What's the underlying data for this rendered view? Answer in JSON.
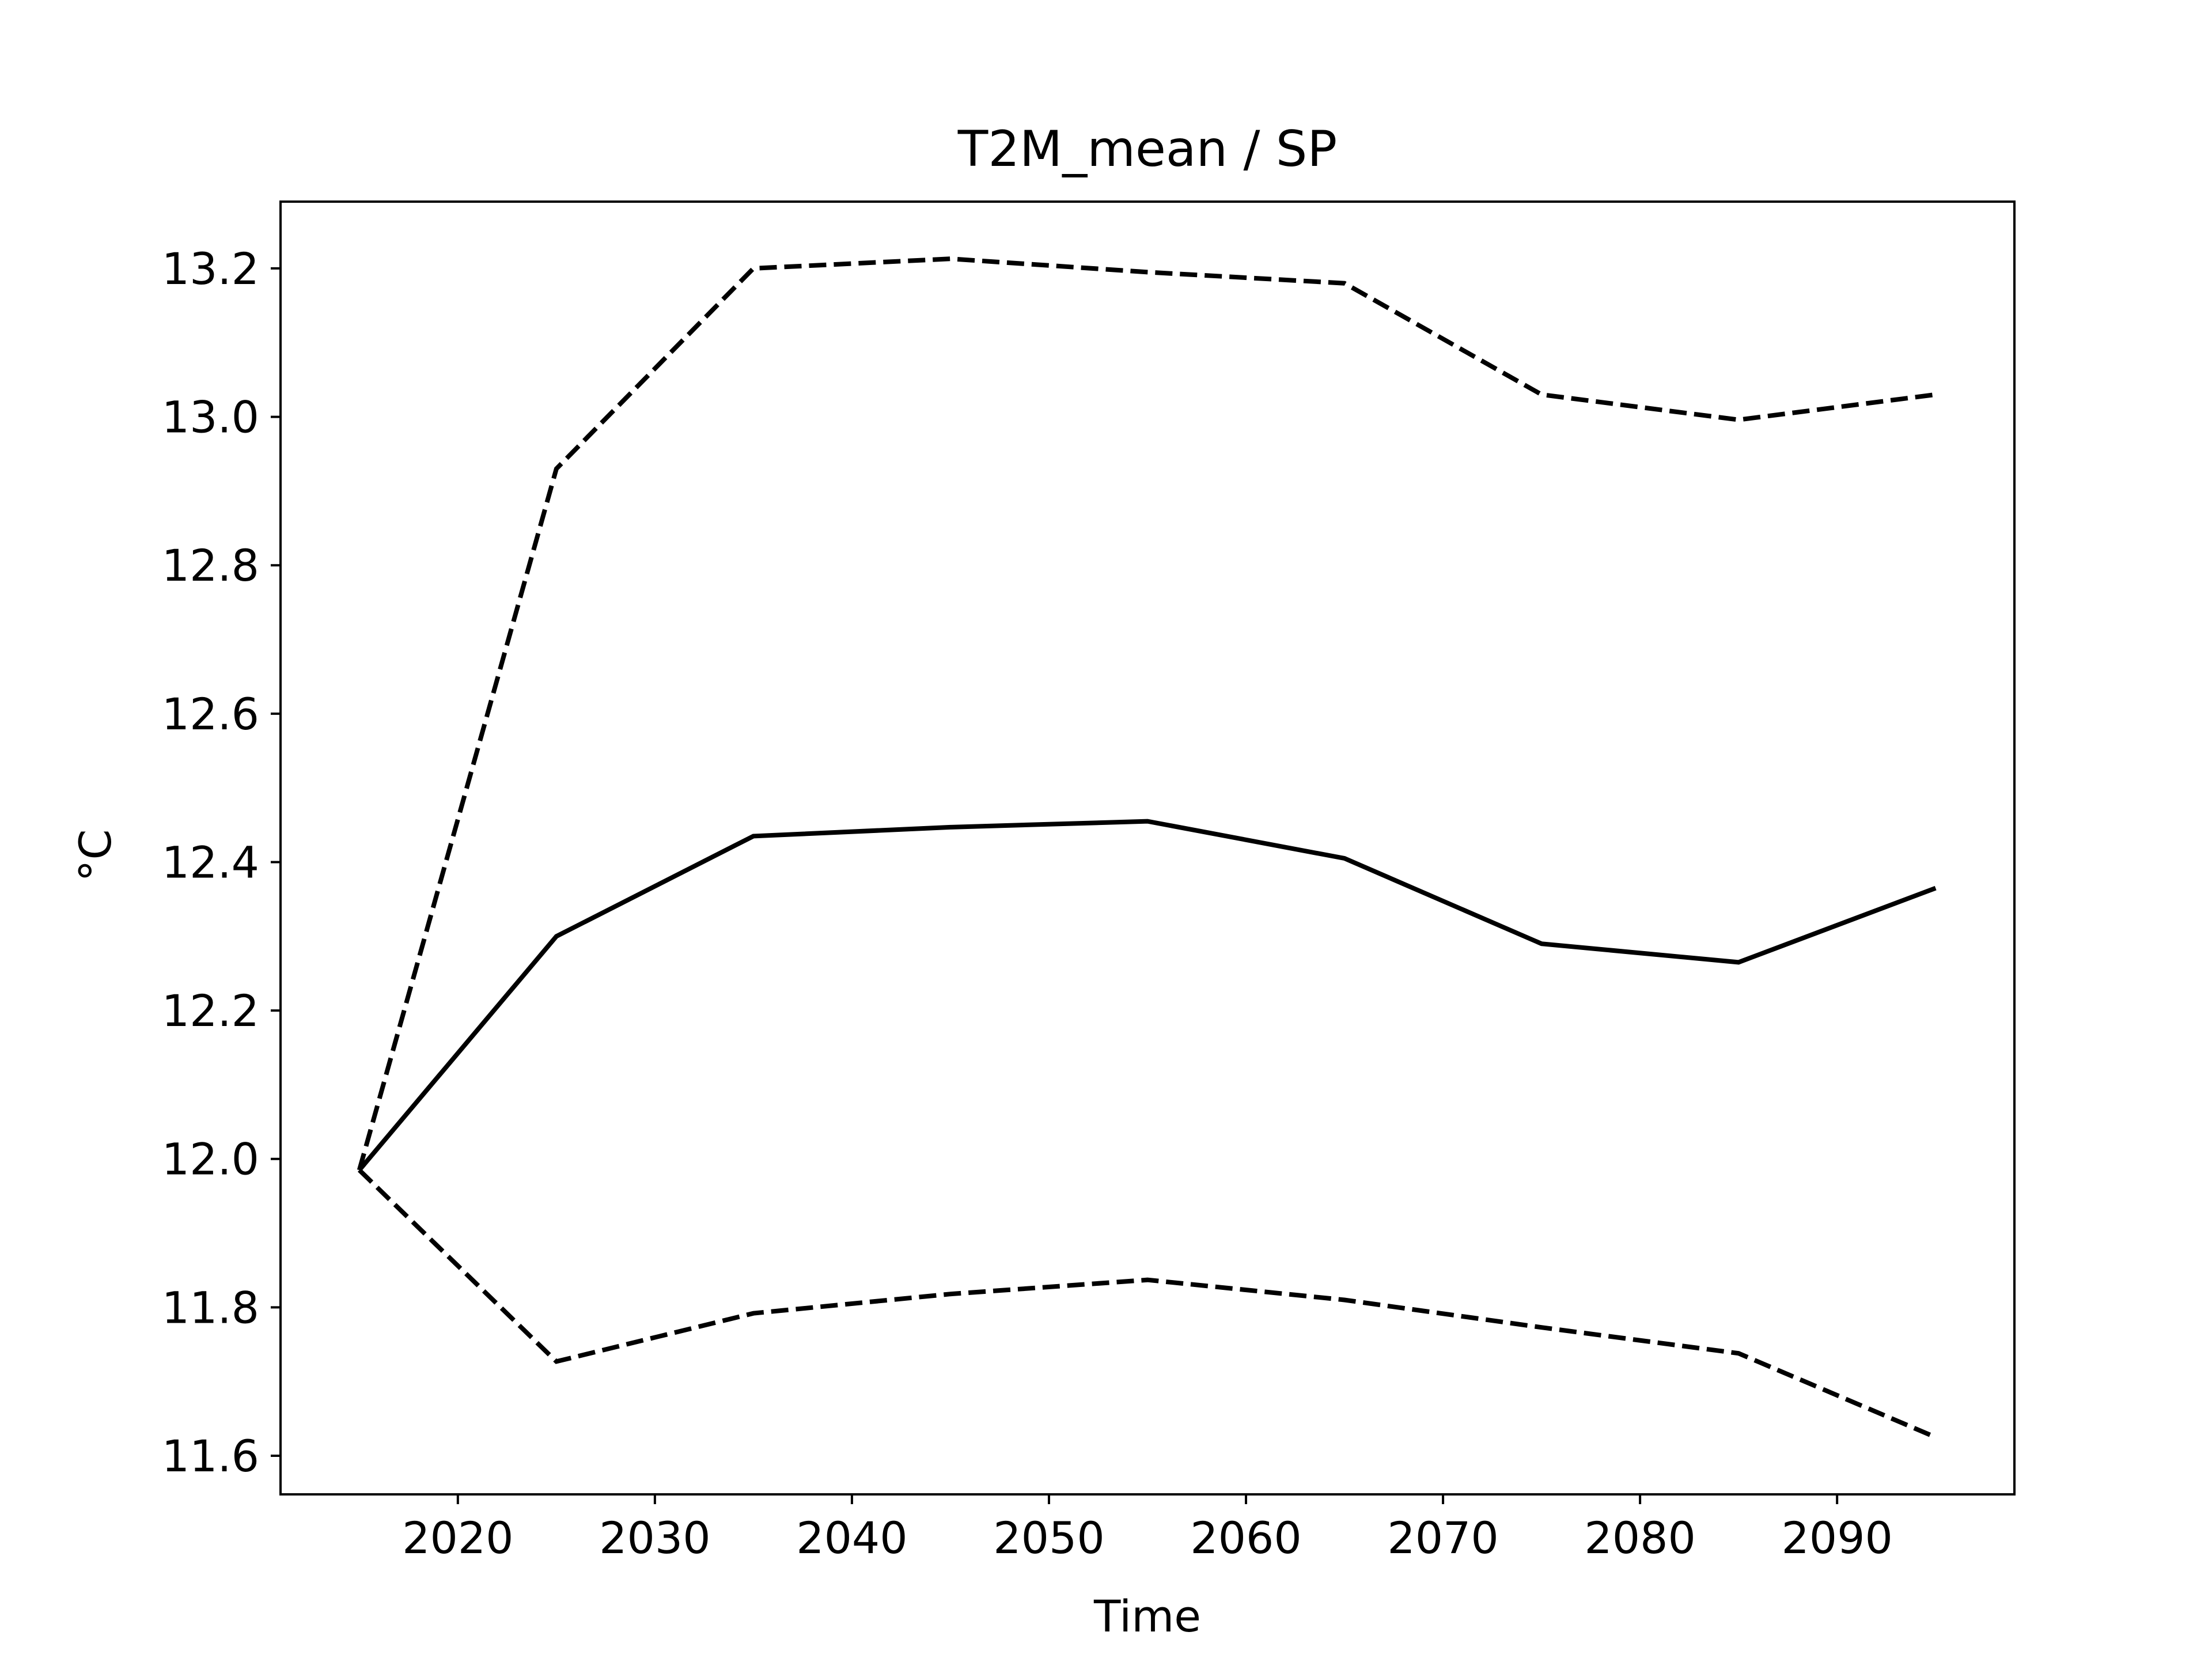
{
  "chart_data": {
    "type": "line",
    "title": "T2M_mean / SP",
    "xlabel": "Time",
    "ylabel": "°C",
    "x": [
      2015,
      2025,
      2035,
      2045,
      2055,
      2065,
      2075,
      2085,
      2095
    ],
    "series": [
      {
        "style": "solid",
        "values": [
          11.985,
          12.3,
          12.435,
          12.447,
          12.455,
          12.405,
          12.29,
          12.265,
          12.365
        ]
      },
      {
        "style": "dashed",
        "values": [
          11.985,
          12.93,
          13.2,
          13.213,
          13.195,
          13.18,
          13.03,
          12.996,
          13.03
        ]
      },
      {
        "style": "dashed",
        "values": [
          11.985,
          11.727,
          11.792,
          11.818,
          11.837,
          11.81,
          11.773,
          11.738,
          11.625
        ]
      }
    ],
    "xlim": [
      2011,
      2099
    ],
    "ylim": [
      11.548,
      13.29
    ],
    "xticks": [
      2020,
      2030,
      2040,
      2050,
      2060,
      2070,
      2080,
      2090
    ],
    "yticks": [
      11.6,
      11.8,
      12.0,
      12.2,
      12.4,
      12.6,
      12.8,
      13.0,
      13.2
    ],
    "xtick_labels": [
      "2020",
      "2030",
      "2040",
      "2050",
      "2060",
      "2070",
      "2080",
      "2090"
    ],
    "ytick_labels": [
      "11.6",
      "11.8",
      "12.0",
      "12.2",
      "12.4",
      "12.6",
      "12.8",
      "13.0",
      "13.2"
    ],
    "grid": false,
    "legend": "none",
    "line_color": "#000000",
    "background_color": "#ffffff"
  }
}
